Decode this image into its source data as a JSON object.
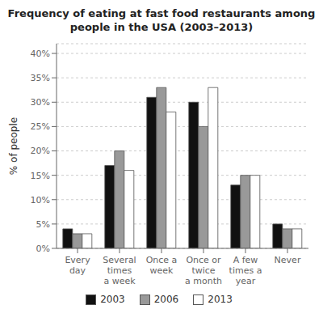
{
  "chart_data": {
    "type": "bar",
    "title": "Frequency of eating at fast food restaurants among\npeople in the USA (2003–2013)",
    "categories": [
      "Every\nday",
      "Several\ntimes\na week",
      "Once a\nweek",
      "Once or\ntwice\na month",
      "A few\ntimes a\nyear",
      "Never"
    ],
    "series": [
      {
        "name": "2003",
        "color": "#111111",
        "values": [
          4,
          17,
          31,
          30,
          13,
          5
        ]
      },
      {
        "name": "2006",
        "color": "#999999",
        "values": [
          3,
          20,
          33,
          25,
          15,
          4
        ]
      },
      {
        "name": "2013",
        "color": "#ffffff",
        "values": [
          3,
          16,
          28,
          33,
          15,
          4
        ]
      }
    ],
    "ylabel": "% of people",
    "ylim": [
      0,
      42
    ],
    "yticks": [
      {
        "value": 0,
        "label": "0%"
      },
      {
        "value": 5,
        "label": "5%"
      },
      {
        "value": 10,
        "label": "10%"
      },
      {
        "value": 15,
        "label": "15%"
      },
      {
        "value": 20,
        "label": "20%"
      },
      {
        "value": 25,
        "label": "25%"
      },
      {
        "value": 30,
        "label": "30%"
      },
      {
        "value": 35,
        "label": "35%"
      },
      {
        "value": 40,
        "label": "40%"
      }
    ],
    "grid": true,
    "legend": "bottom"
  }
}
